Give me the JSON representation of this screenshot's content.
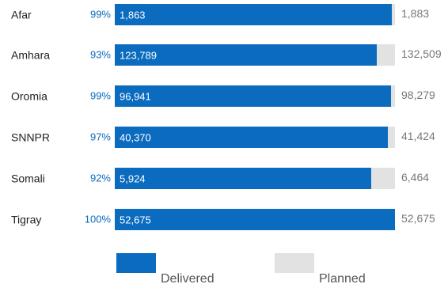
{
  "chart_data": {
    "type": "bar",
    "orientation": "horizontal",
    "categories": [
      "Afar",
      "Amhara",
      "Oromia",
      "SNNPR",
      "Somali",
      "Tigray"
    ],
    "series": [
      {
        "name": "Delivered",
        "values": [
          1863,
          123789,
          96941,
          40370,
          5924,
          52675
        ]
      },
      {
        "name": "Planned",
        "values": [
          1883,
          132509,
          98279,
          41424,
          6464,
          52675
        ]
      }
    ],
    "delivered_labels": [
      "1,863",
      "123,789",
      "96,941",
      "40,370",
      "5,924",
      "52,675"
    ],
    "planned_labels": [
      "1,883",
      "132,509",
      "98,279",
      "41,424",
      "6,464",
      "52,675"
    ],
    "percent_labels": [
      "99%",
      "93%",
      "99%",
      "97%",
      "92%",
      "100%"
    ],
    "legend": [
      "Delivered",
      "Planned"
    ],
    "legend_position": "bottom",
    "colors": {
      "delivered": "#0b6bbf",
      "planned": "#e2e2e2",
      "percent_text": "#0b6bbf"
    }
  }
}
